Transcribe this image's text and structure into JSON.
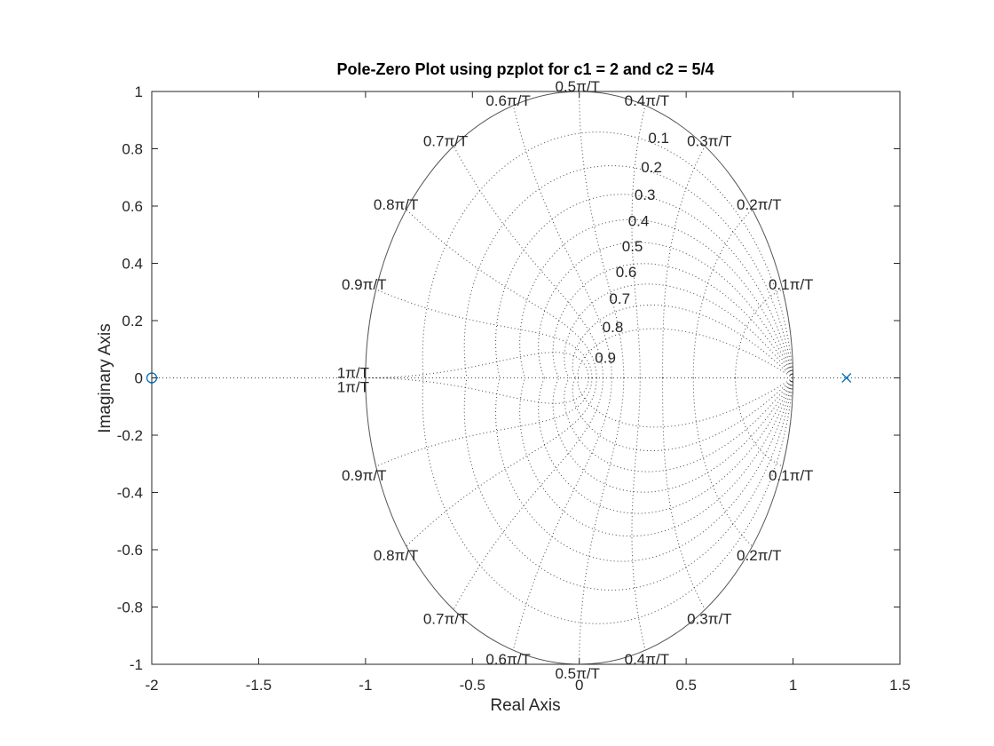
{
  "chart_data": {
    "type": "scatter",
    "title": "Pole-Zero Plot using pzplot for c1 = 2 and c2 = 5/4",
    "xlabel": "Real Axis",
    "ylabel": "Imaginary Axis",
    "xlim": [
      -2,
      1.5
    ],
    "ylim": [
      -1,
      1
    ],
    "x_ticks": [
      -2,
      -1.5,
      -1,
      -0.5,
      0,
      0.5,
      1,
      1.5
    ],
    "x_tick_labels": [
      "-2",
      "-1.5",
      "-1",
      "-0.5",
      "0",
      "0.5",
      "1",
      "1.5"
    ],
    "y_ticks": [
      -1,
      -0.8,
      -0.6,
      -0.4,
      -0.2,
      0,
      0.2,
      0.4,
      0.6,
      0.8,
      1
    ],
    "y_tick_labels": [
      "-1",
      "-0.8",
      "-0.6",
      "-0.4",
      "-0.2",
      "0",
      "0.2",
      "0.4",
      "0.6",
      "0.8",
      "1"
    ],
    "zeros": [
      {
        "x": -2,
        "y": 0
      }
    ],
    "poles": [
      {
        "x": 1.25,
        "y": 0
      }
    ],
    "marker_color": "#0072BD",
    "zgrid": {
      "damping_ratios": [
        0.1,
        0.2,
        0.3,
        0.4,
        0.5,
        0.6,
        0.7,
        0.8,
        0.9
      ],
      "damping_labels": [
        "0.1",
        "0.2",
        "0.3",
        "0.4",
        "0.5",
        "0.6",
        "0.7",
        "0.8",
        "0.9"
      ],
      "natural_freqs": [
        0.1,
        0.2,
        0.3,
        0.4,
        0.5,
        0.6,
        0.7,
        0.8,
        0.9,
        1.0
      ],
      "freq_labels": [
        "0.1π/T",
        "0.2π/T",
        "0.3π/T",
        "0.4π/T",
        "0.5π/T",
        "0.6π/T",
        "0.7π/T",
        "0.8π/T",
        "0.9π/T",
        "1π/T"
      ]
    }
  }
}
